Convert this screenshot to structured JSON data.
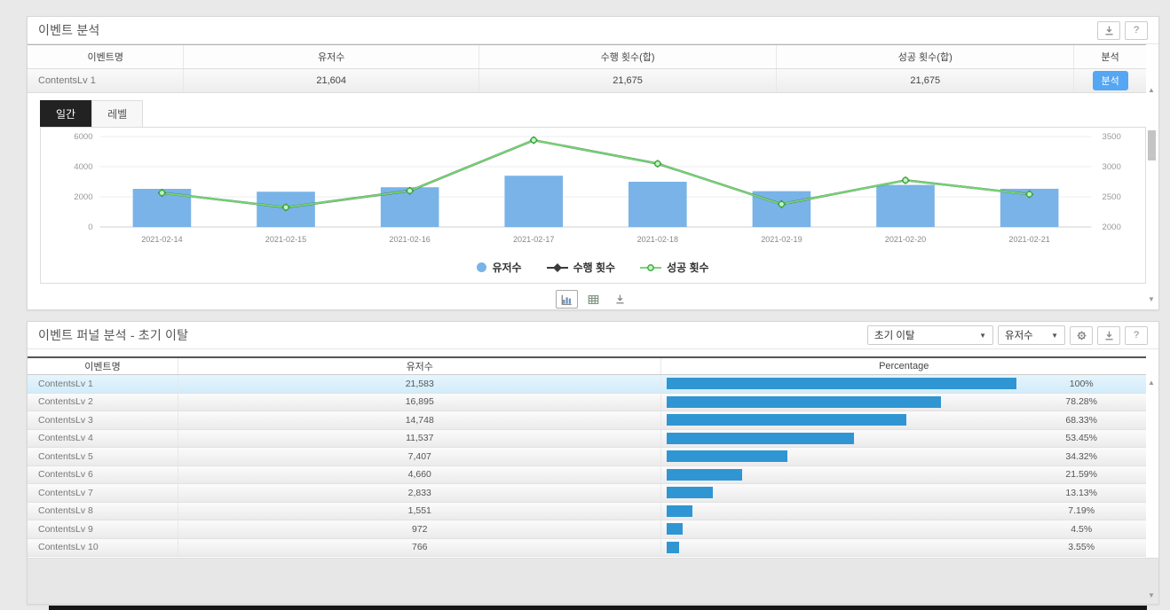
{
  "page": {
    "background": "#e9e9e9",
    "accent_blue": "#55a7f3",
    "funnel_bar_color": "#2f96d3"
  },
  "event_analysis": {
    "title": "이벤트 분석",
    "toolbar": {
      "download_icon": "download-icon",
      "help_label": "?"
    },
    "table": {
      "headers": [
        "이벤트명",
        "유저수",
        "수행 횟수(합)",
        "성공 횟수(합)",
        "분석"
      ],
      "row": {
        "name": "ContentsLv 1",
        "users": "21,604",
        "run_count": "21,675",
        "success_count": "21,675",
        "action_label": "분석"
      }
    },
    "tabs": [
      {
        "label": "일간",
        "active": true
      },
      {
        "label": "레벨",
        "active": false
      }
    ],
    "chart_data": {
      "type": "bar+line",
      "categories": [
        "2021-02-14",
        "2021-02-15",
        "2021-02-16",
        "2021-02-17",
        "2021-02-18",
        "2021-02-19",
        "2021-02-20",
        "2021-02-21"
      ],
      "series": [
        {
          "name": "유저수",
          "type": "bar",
          "axis": "left",
          "color": "#79b3e7",
          "values": [
            2530,
            2340,
            2635,
            3400,
            3000,
            2375,
            2790,
            2534
          ]
        },
        {
          "name": "수행 횟수",
          "type": "line",
          "axis": "right",
          "color": "#3a3a3a",
          "marker": "diamond",
          "values": [
            2565,
            2325,
            2600,
            3440,
            3050,
            2378,
            2774,
            2543
          ]
        },
        {
          "name": "성공 횟수",
          "type": "line",
          "axis": "right",
          "color": "#71d971",
          "marker": "circle",
          "values": [
            2565,
            2325,
            2600,
            3440,
            3050,
            2378,
            2774,
            2543
          ]
        }
      ],
      "left_axis": {
        "ticks": [
          0,
          2000,
          4000,
          6000
        ],
        "range": [
          0,
          6000
        ]
      },
      "right_axis": {
        "ticks": [
          2000,
          2500,
          3000,
          3500
        ],
        "range": [
          2000,
          3500
        ]
      },
      "grid": true,
      "legend_position": "bottom"
    },
    "chart_tools": [
      "bar-chart",
      "table-view",
      "download"
    ]
  },
  "funnel": {
    "title": "이벤트 퍼널 분석 - 초기 이탈",
    "controls": {
      "funnel_type": "초기 이탈",
      "metric": "유저수"
    },
    "table": {
      "headers": [
        "이벤트명",
        "유저수",
        "Percentage"
      ],
      "rows": [
        {
          "name": "ContentsLv 1",
          "users": "21,583",
          "pct": 100,
          "pct_label": "100%",
          "selected": true
        },
        {
          "name": "ContentsLv 2",
          "users": "16,895",
          "pct": 78.28,
          "pct_label": "78.28%",
          "selected": false
        },
        {
          "name": "ContentsLv 3",
          "users": "14,748",
          "pct": 68.33,
          "pct_label": "68.33%",
          "selected": false
        },
        {
          "name": "ContentsLv 4",
          "users": "11,537",
          "pct": 53.45,
          "pct_label": "53.45%",
          "selected": false
        },
        {
          "name": "ContentsLv 5",
          "users": "7,407",
          "pct": 34.32,
          "pct_label": "34.32%",
          "selected": false
        },
        {
          "name": "ContentsLv 6",
          "users": "4,660",
          "pct": 21.59,
          "pct_label": "21.59%",
          "selected": false
        },
        {
          "name": "ContentsLv 7",
          "users": "2,833",
          "pct": 13.13,
          "pct_label": "13.13%",
          "selected": false
        },
        {
          "name": "ContentsLv 8",
          "users": "1,551",
          "pct": 7.19,
          "pct_label": "7.19%",
          "selected": false
        },
        {
          "name": "ContentsLv 9",
          "users": "972",
          "pct": 4.5,
          "pct_label": "4.5%",
          "selected": false
        },
        {
          "name": "ContentsLv 10",
          "users": "766",
          "pct": 3.55,
          "pct_label": "3.55%",
          "selected": false
        }
      ]
    }
  }
}
